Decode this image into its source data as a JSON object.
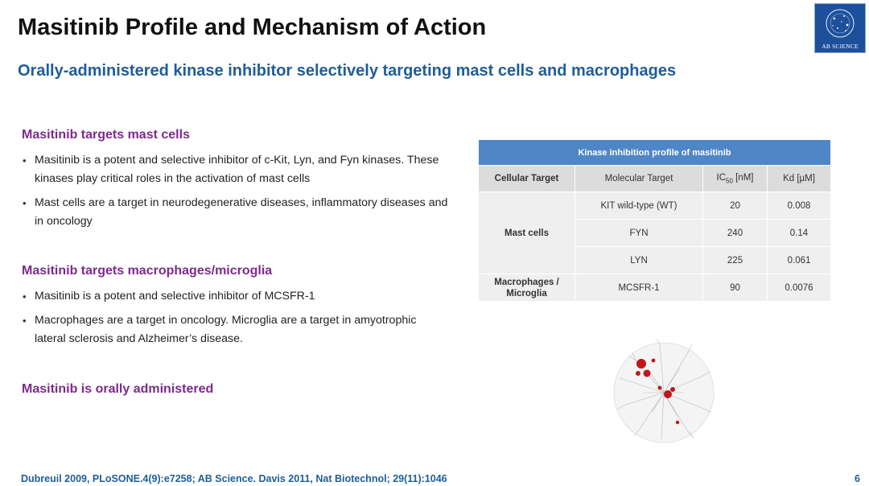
{
  "title": "Masitinib Profile and Mechanism of Action",
  "subtitle": "Orally-administered kinase inhibitor selectively targeting mast cells and macrophages",
  "logo": {
    "text": "AB SCIENCE",
    "color": "#1d4f9a"
  },
  "sections": [
    {
      "heading": "Masitinib targets mast cells",
      "bullets": [
        "Masitinib is a potent and selective inhibitor of c-Kit, Lyn, and Fyn kinases. These kinases play critical roles in the activation of mast cells",
        "Mast cells are a target in neurodegenerative diseases, inflammatory diseases and in oncology"
      ]
    },
    {
      "heading": "Masitinib targets macrophages/microglia",
      "bullets": [
        "Masitinib is a potent and selective inhibitor of MCSFR-1",
        "Macrophages are a target in oncology. Microglia are a target in amyotrophic lateral sclerosis and Alzheimer’s disease."
      ]
    },
    {
      "heading": "Masitinib is orally administered",
      "bullets": []
    }
  ],
  "table": {
    "caption": "Kinase inhibition profile of masitinib",
    "headers": [
      "Cellular Target",
      "Molecular Target",
      "IC",
      "50",
      " [nM]",
      "Kd [µM]"
    ],
    "groups": [
      {
        "cellular_target": "Mast cells",
        "rows": [
          {
            "molecular_target": "KIT wild-type (WT)",
            "ic50": "20",
            "kd": "0.008"
          },
          {
            "molecular_target": "FYN",
            "ic50": "240",
            "kd": "0.14"
          },
          {
            "molecular_target": "LYN",
            "ic50": "225",
            "kd": "0.061"
          }
        ]
      },
      {
        "cellular_target": "Macrophages / Microglia",
        "rows": [
          {
            "molecular_target": "MCSFR-1",
            "ic50": "90",
            "kd": "0.0076"
          }
        ]
      }
    ],
    "colors": {
      "caption_bg": "#4f86c6",
      "header_bg": "#dcdcdc",
      "cell_bg": "#efefef"
    }
  },
  "kinome_image": {
    "icon": "kinome-tree-icon",
    "accent": "#c0171b"
  },
  "footer": "Dubreuil 2009, PLoSONE.4(9):e7258; AB Science. Davis 2011, Nat Biotechnol; 29(11):1046",
  "page_number": "6",
  "colors": {
    "title": "#111111",
    "subtitle": "#1f5d99",
    "section_heading": "#7d2a8c",
    "footer": "#1f5d99"
  }
}
